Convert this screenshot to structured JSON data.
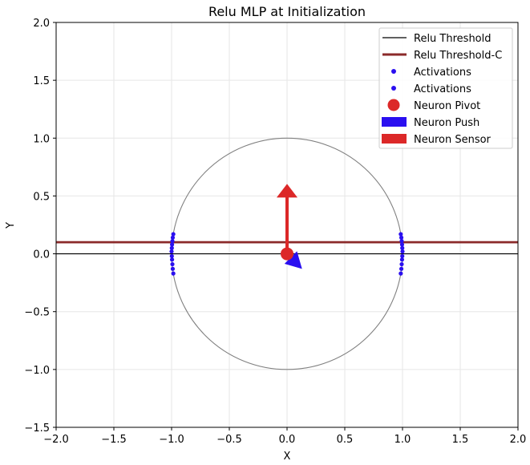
{
  "chart_data": {
    "type": "scatter",
    "title": "Relu MLP at Initialization",
    "xlabel": "X",
    "ylabel": "Y",
    "xlim": [
      -2.0,
      2.0
    ],
    "ylim": [
      -1.5,
      2.0
    ],
    "grid": true,
    "x_ticks": [
      "−2.0",
      "−1.5",
      "−1.0",
      "−0.5",
      "0.0",
      "0.5",
      "1.0",
      "1.5",
      "2.0"
    ],
    "x_tick_values": [
      -2.0,
      -1.5,
      -1.0,
      -0.5,
      0.0,
      0.5,
      1.0,
      1.5,
      2.0
    ],
    "y_ticks": [
      "−1.5",
      "−1.0",
      "−0.5",
      "0.0",
      "0.5",
      "1.0",
      "1.5",
      "2.0"
    ],
    "y_tick_values": [
      -1.5,
      -1.0,
      -0.5,
      0.0,
      0.5,
      1.0,
      1.5,
      2.0
    ],
    "circle": {
      "center": [
        0,
        0
      ],
      "radius": 1.0,
      "color": "#808080"
    },
    "relu_threshold": {
      "label": "Relu Threshold",
      "y": 0.0,
      "color": "#000000"
    },
    "relu_threshold_c": {
      "label": "Relu Threshold-C",
      "y": 0.1,
      "color": "#8b2a2a"
    },
    "activations_left": {
      "label": "Activations",
      "color": "#2a0ff0",
      "x": [
        -0.985,
        -0.99,
        -0.993,
        -0.996,
        -0.998,
        -1.0,
        -0.998,
        -0.996,
        -0.993,
        -0.99,
        -0.985
      ],
      "y": [
        0.17,
        0.14,
        0.11,
        0.08,
        0.05,
        0.02,
        -0.02,
        -0.05,
        -0.09,
        -0.13,
        -0.17
      ]
    },
    "activations_right": {
      "label": "Activations",
      "color": "#2a0ff0",
      "x": [
        0.985,
        0.99,
        0.993,
        0.996,
        0.998,
        1.0,
        0.998,
        0.996,
        0.993,
        0.99,
        0.985
      ],
      "y": [
        0.17,
        0.14,
        0.11,
        0.08,
        0.05,
        0.02,
        -0.02,
        -0.05,
        -0.09,
        -0.13,
        -0.17
      ]
    },
    "neuron_pivot": {
      "label": "Neuron Pivot",
      "x": 0.0,
      "y": 0.0,
      "color": "#dc2828"
    },
    "neuron_push": {
      "label": "Neuron Push",
      "from": [
        0.0,
        0.0
      ],
      "to": [
        0.13,
        -0.13
      ],
      "color": "#2a0ff0"
    },
    "neuron_sensor": {
      "label": "Neuron Sensor",
      "from": [
        0.0,
        0.0
      ],
      "to": [
        0.0,
        0.5
      ],
      "color": "#dc2828"
    },
    "legend_position": "top-right"
  }
}
